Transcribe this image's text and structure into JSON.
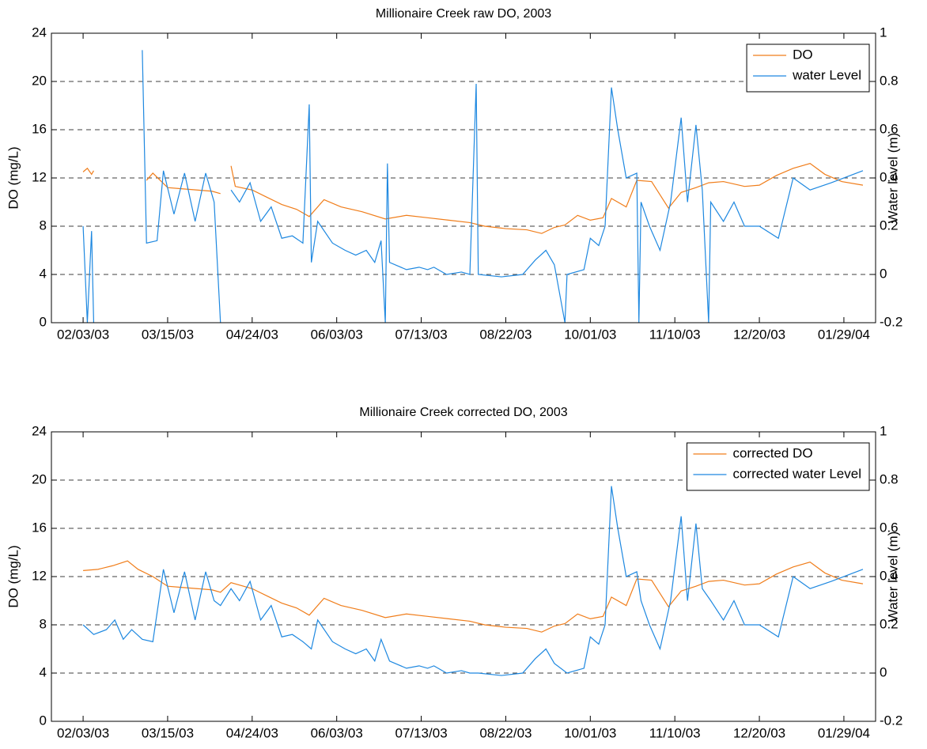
{
  "chart_data": [
    {
      "type": "line",
      "title": "Millionaire Creek raw DO, 2003",
      "ylabel": "DO (mg/L)",
      "y2label": "Water level (m)",
      "xlim": [
        "01/19/03",
        "02/13/04"
      ],
      "xticks": [
        "02/03/03",
        "03/15/03",
        "04/24/03",
        "06/03/03",
        "07/13/03",
        "08/22/03",
        "10/01/03",
        "11/10/03",
        "12/20/03",
        "01/29/04"
      ],
      "ylim": [
        0,
        24
      ],
      "yticks": [
        0,
        4,
        8,
        12,
        16,
        20,
        24
      ],
      "y2lim": [
        -0.2,
        1
      ],
      "y2ticks": [
        -0.2,
        0,
        0.2,
        0.4,
        0.6,
        0.8,
        1
      ],
      "grid": true,
      "legend": "upper right",
      "series": [
        {
          "name": "DO",
          "color": "#f07d1a",
          "x": [
            "02/03/03",
            "02/05/03",
            "02/07/03",
            "02/08/03",
            "02/20/03",
            "03/05/03",
            "03/08/03",
            "03/15/03",
            "03/22/03",
            "03/29/03",
            "04/05/03",
            "04/09/03",
            "04/11/03",
            "04/14/03",
            "04/16/03",
            "04/24/03",
            "05/01/03",
            "05/08/03",
            "05/15/03",
            "05/21/03",
            "05/28/03",
            "06/05/03",
            "06/15/03",
            "06/26/03",
            "07/06/03",
            "07/16/03",
            "07/26/03",
            "08/05/03",
            "08/12/03",
            "08/22/03",
            "09/01/03",
            "09/08/03",
            "09/14/03",
            "09/19/03",
            "09/25/03",
            "10/01/03",
            "10/07/03",
            "10/11/03",
            "10/18/03",
            "10/23/03",
            "10/30/03",
            "11/03/03",
            "11/07/03",
            "11/13/03",
            "11/20/03",
            "11/26/03",
            "12/03/03",
            "12/13/03",
            "12/20/03",
            "12/28/03",
            "01/05/04",
            "01/13/04",
            "01/20/04",
            "01/28/04",
            "02/07/04"
          ],
          "values": [
            12.5,
            12.8,
            12.3,
            12.6,
            null,
            11.8,
            12.4,
            11.2,
            11.1,
            11.0,
            10.9,
            10.7,
            null,
            13.0,
            11.3,
            11.0,
            10.4,
            9.8,
            9.4,
            8.8,
            10.2,
            9.6,
            9.2,
            8.6,
            8.9,
            8.7,
            8.5,
            8.3,
            8.0,
            7.8,
            7.7,
            7.4,
            7.9,
            8.1,
            8.9,
            8.5,
            8.7,
            10.3,
            9.6,
            11.8,
            11.7,
            10.6,
            9.5,
            10.8,
            11.2,
            11.6,
            11.7,
            11.3,
            11.4,
            12.2,
            12.8,
            13.2,
            12.3,
            11.7,
            11.4
          ]
        },
        {
          "name": "water Level",
          "color": "#1e88e0",
          "axis": "y2",
          "x": [
            "02/03/03",
            "02/05/03",
            "02/07/03",
            "02/08/03",
            "02/20/03",
            "03/03/03",
            "03/05/03",
            "03/10/03",
            "03/13/03",
            "03/18/03",
            "03/23/03",
            "03/28/03",
            "04/02/03",
            "04/06/03",
            "04/09/03",
            "04/11/03",
            "04/14/03",
            "04/18/03",
            "04/23/03",
            "04/28/03",
            "05/03/03",
            "05/08/03",
            "05/13/03",
            "05/18/03",
            "05/21/03",
            "05/22/03",
            "05/25/03",
            "06/01/03",
            "06/07/03",
            "06/12/03",
            "06/17/03",
            "06/21/03",
            "06/24/03",
            "06/26/03",
            "06/27/03",
            "06/28/03",
            "07/06/03",
            "07/12/03",
            "07/16/03",
            "07/19/03",
            "07/25/03",
            "08/01/03",
            "08/05/03",
            "08/08/03",
            "08/09/03",
            "08/20/03",
            "08/30/03",
            "09/05/03",
            "09/10/03",
            "09/14/03",
            "09/19/03",
            "09/20/03",
            "09/28/03",
            "10/01/03",
            "10/05/03",
            "10/08/03",
            "10/11/03",
            "10/14/03",
            "10/18/03",
            "10/23/03",
            "10/24/03",
            "10/25/03",
            "10/29/03",
            "11/03/03",
            "11/08/03",
            "11/13/03",
            "11/16/03",
            "11/20/03",
            "11/23/03",
            "11/26/03",
            "11/27/03",
            "12/03/03",
            "12/08/03",
            "12/13/03",
            "12/20/03",
            "12/29/03",
            "01/05/04",
            "01/13/04",
            "01/23/04",
            "02/07/04"
          ],
          "values": [
            0.2,
            -0.2,
            0.18,
            -0.2,
            null,
            0.93,
            0.13,
            0.14,
            0.43,
            0.25,
            0.42,
            0.22,
            0.42,
            0.3,
            -0.2,
            null,
            0.35,
            0.3,
            0.38,
            0.22,
            0.28,
            0.15,
            0.16,
            0.13,
            0.705,
            0.05,
            0.22,
            0.13,
            0.1,
            0.08,
            0.1,
            0.05,
            0.14,
            -0.2,
            0.46,
            0.05,
            0.02,
            0.03,
            0.02,
            0.03,
            0.0,
            0.01,
            0.0,
            0.79,
            0.0,
            -0.01,
            0.0,
            0.06,
            0.1,
            0.04,
            -0.2,
            0.0,
            0.02,
            0.15,
            0.12,
            0.2,
            0.775,
            0.6,
            0.4,
            0.42,
            -0.2,
            0.3,
            0.2,
            0.1,
            0.3,
            0.65,
            0.3,
            0.62,
            0.35,
            -0.2,
            0.3,
            0.22,
            0.3,
            0.2,
            0.2,
            0.15,
            0.4,
            0.35,
            0.38,
            0.43
          ]
        }
      ]
    },
    {
      "type": "line",
      "title": "Millionaire Creek corrected DO, 2003",
      "ylabel": "DO (mg/L)",
      "y2label": "Water level (m)",
      "xlim": [
        "01/19/03",
        "02/13/04"
      ],
      "xticks": [
        "02/03/03",
        "03/15/03",
        "04/24/03",
        "06/03/03",
        "07/13/03",
        "08/22/03",
        "10/01/03",
        "11/10/03",
        "12/20/03",
        "01/29/04"
      ],
      "ylim": [
        0,
        24
      ],
      "yticks": [
        0,
        4,
        8,
        12,
        16,
        20,
        24
      ],
      "y2lim": [
        -0.2,
        1
      ],
      "y2ticks": [
        -0.2,
        0,
        0.2,
        0.4,
        0.6,
        0.8,
        1
      ],
      "grid": true,
      "legend": "upper right",
      "series": [
        {
          "name": "corrected DO",
          "color": "#f07d1a",
          "x": [
            "02/03/03",
            "02/10/03",
            "02/17/03",
            "02/24/03",
            "03/01/03",
            "03/08/03",
            "03/15/03",
            "03/22/03",
            "03/29/03",
            "04/05/03",
            "04/09/03",
            "04/14/03",
            "04/24/03",
            "05/01/03",
            "05/08/03",
            "05/15/03",
            "05/21/03",
            "05/28/03",
            "06/05/03",
            "06/15/03",
            "06/26/03",
            "07/06/03",
            "07/16/03",
            "07/26/03",
            "08/05/03",
            "08/12/03",
            "08/22/03",
            "09/01/03",
            "09/08/03",
            "09/14/03",
            "09/19/03",
            "09/25/03",
            "10/01/03",
            "10/07/03",
            "10/11/03",
            "10/18/03",
            "10/23/03",
            "10/30/03",
            "11/03/03",
            "11/07/03",
            "11/13/03",
            "11/20/03",
            "11/26/03",
            "12/03/03",
            "12/13/03",
            "12/20/03",
            "12/28/03",
            "01/05/04",
            "01/13/04",
            "01/20/04",
            "01/28/04",
            "02/07/04"
          ],
          "values": [
            12.5,
            12.6,
            12.9,
            13.3,
            12.6,
            12.0,
            11.2,
            11.1,
            11.0,
            10.9,
            10.7,
            11.5,
            11.0,
            10.4,
            9.8,
            9.4,
            8.8,
            10.2,
            9.6,
            9.2,
            8.6,
            8.9,
            8.7,
            8.5,
            8.3,
            8.0,
            7.8,
            7.7,
            7.4,
            7.9,
            8.1,
            8.9,
            8.5,
            8.7,
            10.3,
            9.6,
            11.8,
            11.7,
            10.6,
            9.5,
            10.8,
            11.2,
            11.6,
            11.7,
            11.3,
            11.4,
            12.2,
            12.8,
            13.2,
            12.3,
            11.7,
            11.4
          ]
        },
        {
          "name": "corrected water Level",
          "color": "#1e88e0",
          "axis": "y2",
          "x": [
            "02/03/03",
            "02/08/03",
            "02/14/03",
            "02/18/03",
            "02/22/03",
            "02/26/03",
            "03/03/03",
            "03/08/03",
            "03/13/03",
            "03/18/03",
            "03/23/03",
            "03/28/03",
            "04/02/03",
            "04/06/03",
            "04/09/03",
            "04/14/03",
            "04/18/03",
            "04/23/03",
            "04/28/03",
            "05/03/03",
            "05/08/03",
            "05/13/03",
            "05/18/03",
            "05/22/03",
            "05/25/03",
            "06/01/03",
            "06/07/03",
            "06/12/03",
            "06/17/03",
            "06/21/03",
            "06/24/03",
            "06/28/03",
            "07/06/03",
            "07/12/03",
            "07/16/03",
            "07/19/03",
            "07/25/03",
            "08/01/03",
            "08/05/03",
            "08/09/03",
            "08/20/03",
            "08/30/03",
            "09/05/03",
            "09/10/03",
            "09/14/03",
            "09/20/03",
            "09/28/03",
            "10/01/03",
            "10/05/03",
            "10/08/03",
            "10/11/03",
            "10/14/03",
            "10/18/03",
            "10/23/03",
            "10/25/03",
            "10/29/03",
            "11/03/03",
            "11/08/03",
            "11/13/03",
            "11/16/03",
            "11/20/03",
            "11/23/03",
            "11/27/03",
            "12/03/03",
            "12/08/03",
            "12/13/03",
            "12/20/03",
            "12/29/03",
            "01/05/04",
            "01/13/04",
            "01/23/04",
            "02/07/04"
          ],
          "values": [
            0.2,
            0.16,
            0.18,
            0.22,
            0.14,
            0.18,
            0.14,
            0.13,
            0.43,
            0.25,
            0.42,
            0.22,
            0.42,
            0.3,
            0.28,
            0.35,
            0.3,
            0.38,
            0.22,
            0.28,
            0.15,
            0.16,
            0.13,
            0.1,
            0.22,
            0.13,
            0.1,
            0.08,
            0.1,
            0.05,
            0.14,
            0.05,
            0.02,
            0.03,
            0.02,
            0.03,
            0.0,
            0.01,
            0.0,
            0.0,
            -0.01,
            0.0,
            0.06,
            0.1,
            0.04,
            0.0,
            0.02,
            0.15,
            0.12,
            0.2,
            0.775,
            0.6,
            0.4,
            0.42,
            0.3,
            0.2,
            0.1,
            0.3,
            0.65,
            0.3,
            0.62,
            0.35,
            0.3,
            0.22,
            0.3,
            0.2,
            0.2,
            0.15,
            0.4,
            0.35,
            0.38,
            0.43
          ]
        }
      ]
    }
  ]
}
